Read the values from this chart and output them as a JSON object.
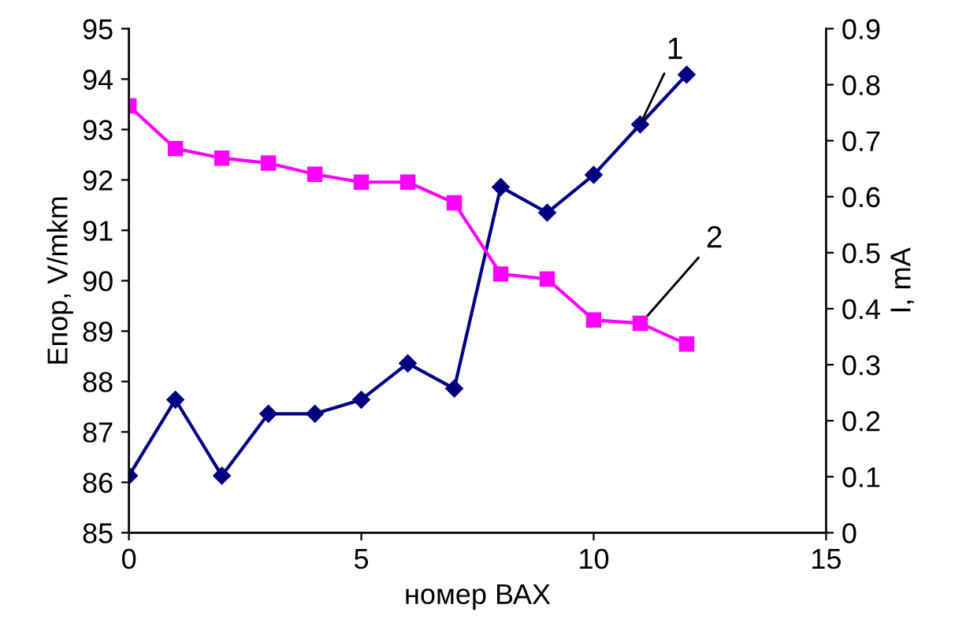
{
  "chart_data": {
    "type": "line",
    "xlabel": "номер ВАХ",
    "ylabel": "Eпор, V/mkm",
    "y2label": "I, mA",
    "x": [
      0,
      1,
      2,
      3,
      4,
      5,
      6,
      7,
      8,
      9,
      10,
      11,
      12
    ],
    "series": [
      {
        "color": "#000080",
        "marker": "diamond",
        "values": [
          86.13,
          87.64,
          86.13,
          87.36,
          87.36,
          87.64,
          88.36,
          87.86,
          91.86,
          91.35,
          92.1,
          93.1,
          94.09
        ]
      },
      {
        "color": "#ff00ff",
        "marker": "square",
        "axis": "y2",
        "values": [
          0.762,
          0.686,
          0.669,
          0.66,
          0.64,
          0.626,
          0.626,
          0.589,
          0.462,
          0.453,
          0.38,
          0.374,
          0.337
        ]
      }
    ],
    "xlim": [
      0,
      15
    ],
    "xticks": [
      0,
      5,
      10,
      15
    ],
    "ylim": [
      85,
      95
    ],
    "yticks": [
      85,
      86,
      87,
      88,
      89,
      90,
      91,
      92,
      93,
      94,
      95
    ],
    "y2lim": [
      0,
      0.9
    ],
    "y2ticks": [
      0,
      0.1,
      0.2,
      0.3,
      0.4,
      0.5,
      0.6,
      0.7,
      0.8,
      0.9
    ],
    "annotations": [
      {
        "text": "1",
        "x": 11,
        "y": 93.1
      },
      {
        "text": "2",
        "x": 11,
        "y": 89.14
      }
    ],
    "grid": false,
    "legend": false
  }
}
